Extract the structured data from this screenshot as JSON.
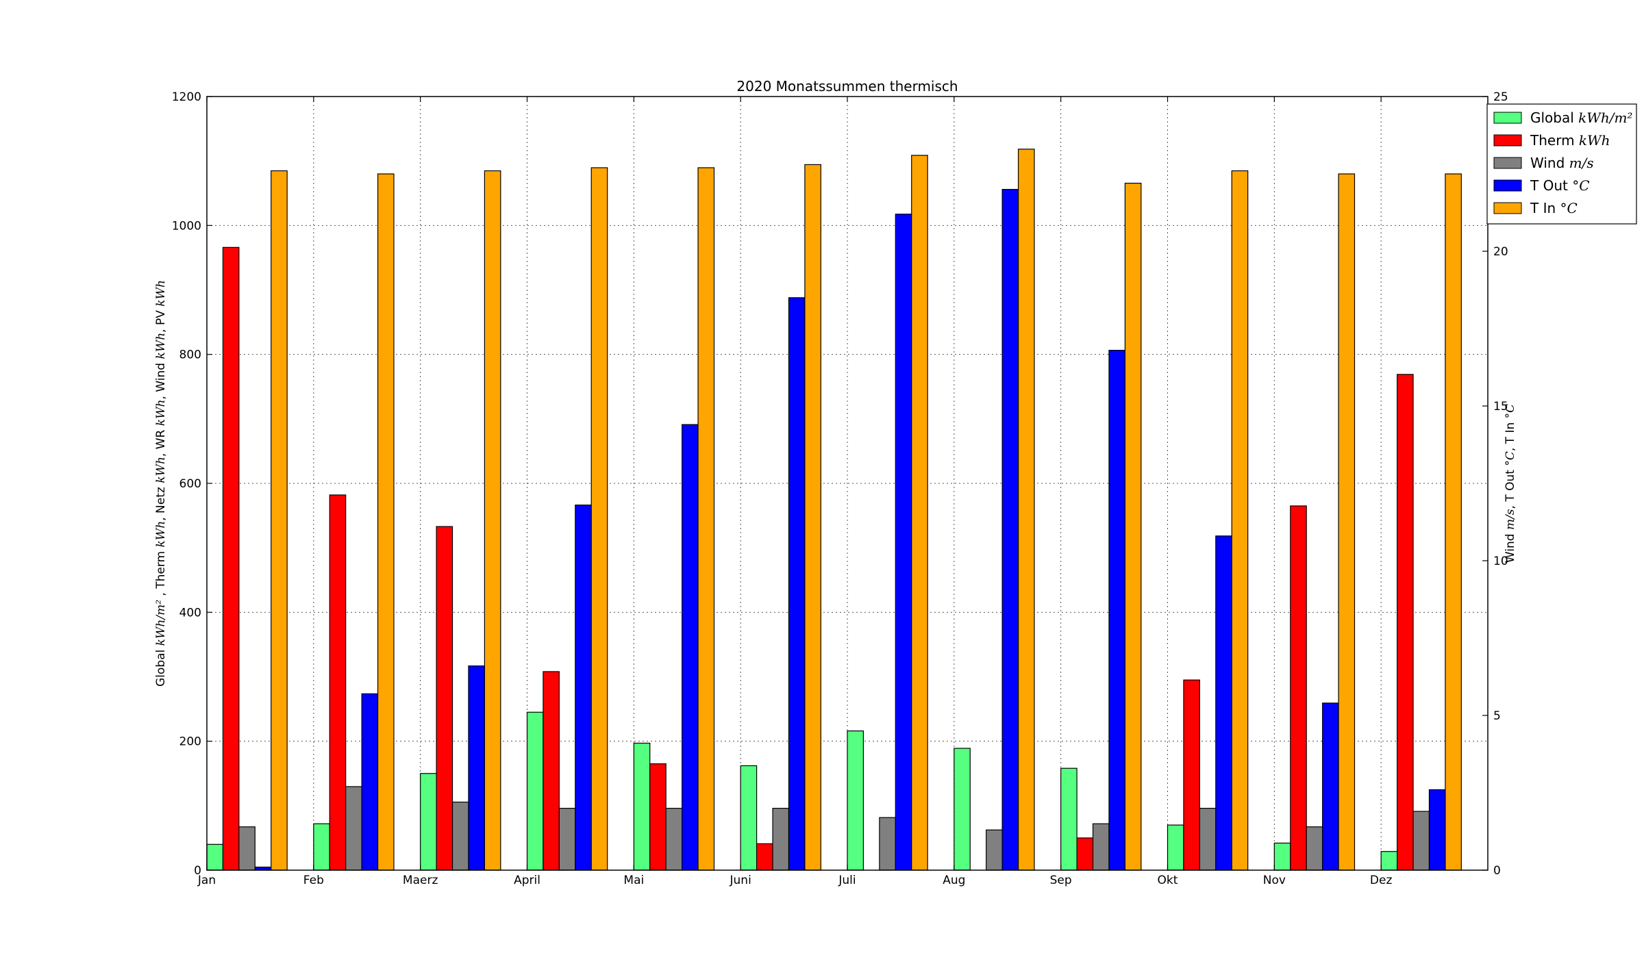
{
  "chart_data": {
    "type": "bar",
    "title": "2020 Monatssummen thermisch",
    "categories": [
      "Jan",
      "Feb",
      "Maerz",
      "April",
      "Mai",
      "Juni",
      "Juli",
      "Aug",
      "Sep",
      "Okt",
      "Nov",
      "Dez"
    ],
    "ylabel_left": {
      "parts": [
        {
          "t": "Global "
        },
        {
          "t": "kWh/m²",
          "math": true
        },
        {
          "t": " , Therm "
        },
        {
          "t": "kWh",
          "math": true
        },
        {
          "t": ", Netz "
        },
        {
          "t": "kWh",
          "math": true
        },
        {
          "t": ", WR "
        },
        {
          "t": "kWh",
          "math": true
        },
        {
          "t": ", Wind "
        },
        {
          "t": "kWh",
          "math": true
        },
        {
          "t": ", PV "
        },
        {
          "t": "kWh",
          "math": true
        }
      ]
    },
    "ylabel_right": {
      "parts": [
        {
          "t": "Wind "
        },
        {
          "t": "m/s",
          "math": true
        },
        {
          "t": ", T Out "
        },
        {
          "t": "°C",
          "math": true
        },
        {
          "t": ", T In "
        },
        {
          "t": "°C",
          "math": true
        }
      ]
    },
    "ylim_left": [
      0,
      1200
    ],
    "yticks_left": [
      0,
      200,
      400,
      600,
      800,
      1000,
      1200
    ],
    "ylim_right": [
      0,
      25
    ],
    "yticks_right": [
      0,
      5,
      10,
      15,
      20,
      25
    ],
    "grid": true,
    "legend_position": "top-right",
    "series": [
      {
        "name": "Global",
        "unit": "kWh/m²",
        "axis": "left",
        "color": "#55ff80",
        "values": [
          40,
          72,
          150,
          245,
          197,
          162,
          216,
          189,
          158,
          70,
          42,
          29
        ]
      },
      {
        "name": "Therm",
        "unit": "kWh",
        "axis": "left",
        "color": "#ff0000",
        "values": [
          966,
          582,
          533,
          308,
          165,
          41,
          0,
          0,
          50,
          295,
          565,
          769
        ]
      },
      {
        "name": "Wind",
        "unit": "m/s",
        "axis": "right",
        "color": "#808080",
        "values": [
          1.4,
          2.7,
          2.2,
          2.0,
          2.0,
          2.0,
          1.7,
          1.3,
          1.5,
          2.0,
          1.4,
          1.9
        ]
      },
      {
        "name": "T Out",
        "unit": "°C",
        "axis": "right",
        "color": "#0000ff",
        "values": [
          0.1,
          5.7,
          6.6,
          11.8,
          14.4,
          18.5,
          21.2,
          22.0,
          16.8,
          10.8,
          5.4,
          2.6
        ]
      },
      {
        "name": "T In",
        "unit": "°C",
        "axis": "right",
        "color": "#ffa500",
        "values": [
          22.6,
          22.5,
          22.6,
          22.7,
          22.7,
          22.8,
          23.1,
          23.3,
          22.2,
          22.6,
          22.5,
          22.5
        ]
      }
    ]
  }
}
